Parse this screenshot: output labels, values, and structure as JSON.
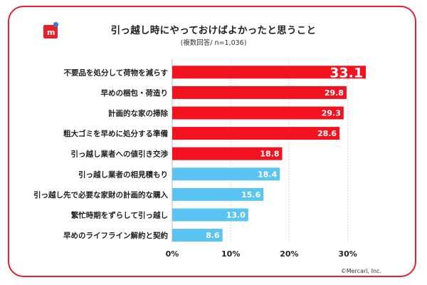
{
  "header": {
    "title": "引っ越し時にやっておけばよかったと思うこと",
    "subtitle": "(複数回答/ n=1,036)"
  },
  "footer": {
    "copyright": "©Mercari, Inc."
  },
  "colors": {
    "highlight": "#f3121f",
    "normal": "#5bc4f2",
    "frame": "#e8202a"
  },
  "chart_data": {
    "type": "bar",
    "orientation": "horizontal",
    "title": "引っ越し時にやっておけばよかったと思うこと",
    "subtitle": "(複数回答/ n=1,036)",
    "categories": [
      "不要品を処分して荷物を減らす",
      "早めの梱包・荷造り",
      "計画的な家の掃除",
      "粗大ゴミを早めに処分する準備",
      "引っ越し業者への値引き交渉",
      "引っ越し業者の相見積もり",
      "引っ越し先で必要な家財の計画的な購入",
      "繁忙時期をずらして引っ越し",
      "早めのライフライン解約と契約"
    ],
    "values": [
      33.1,
      29.8,
      29.3,
      28.6,
      18.8,
      18.4,
      15.6,
      13.0,
      8.6
    ],
    "value_labels": [
      "33.1",
      "29.8",
      "29.3",
      "28.6",
      "18.8",
      "18.4",
      "15.6",
      "13.0",
      "8.6"
    ],
    "highlighted": [
      true,
      true,
      true,
      true,
      true,
      false,
      false,
      false,
      false
    ],
    "xlim": [
      0,
      35
    ],
    "xticks": [
      0,
      10,
      20,
      30
    ],
    "xtick_labels": [
      "0%",
      "10%",
      "20%",
      "30%"
    ],
    "grid": true
  }
}
